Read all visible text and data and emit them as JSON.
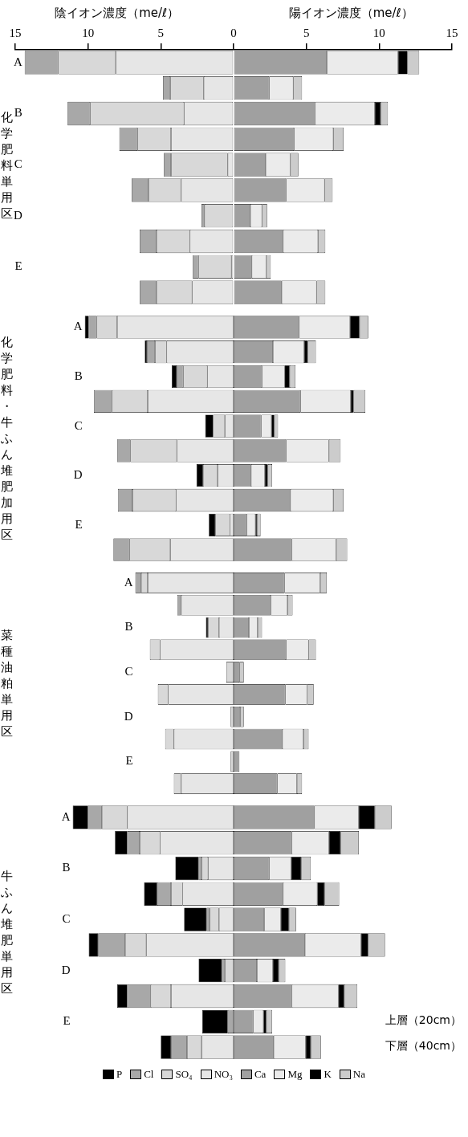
{
  "chart_data": [
    {
      "type": "bar",
      "orientation": "horizontal",
      "stacked": true,
      "xlim": [
        -15,
        15
      ],
      "xticks": [
        {
          "value": -15,
          "label": "15"
        },
        {
          "value": -10,
          "label": "10"
        },
        {
          "value": -5,
          "label": "5"
        },
        {
          "value": 0,
          "label": "0"
        },
        {
          "value": 5,
          "label": "5"
        },
        {
          "value": 10,
          "label": "10"
        },
        {
          "value": 15,
          "label": "15"
        }
      ],
      "ylabel": "化学肥料単用区",
      "annotations": [
        "陰イオン濃度（me/ℓ）",
        "陽イオン濃度（me/ℓ）"
      ],
      "categories": [
        "A",
        null,
        "B",
        null,
        "C",
        null,
        "D",
        null,
        "E",
        null
      ],
      "series": [
        {
          "color": "#e6e6e6",
          "values": [
            -8.1,
            -2.05,
            -3.4,
            -4.3,
            -0.4,
            -3.6,
            null,
            -3.0,
            -0.15,
            -2.85
          ]
        },
        {
          "color": "#d8d8d8",
          "values": [
            -3.95,
            -2.3,
            -6.45,
            -2.3,
            -3.9,
            -2.25,
            -2.0,
            -2.3,
            -2.25,
            -2.45
          ]
        },
        {
          "color": "#a8a8a8",
          "values": [
            -2.3,
            -0.5,
            -1.55,
            -1.25,
            -0.5,
            -1.15,
            -0.2,
            -1.15,
            -0.4,
            -1.15
          ]
        },
        {
          "color": "#a0a0a0",
          "values": [
            6.4,
            2.45,
            5.6,
            4.15,
            2.2,
            3.6,
            1.15,
            3.4,
            1.25,
            3.3
          ]
        },
        {
          "color": "#ebebeb",
          "values": [
            4.9,
            1.65,
            4.1,
            2.7,
            1.7,
            2.65,
            0.8,
            2.4,
            1.0,
            2.4
          ]
        },
        {
          "color": "#000000",
          "values": [
            0.65,
            null,
            0.4,
            null,
            null,
            null,
            null,
            null,
            null,
            null
          ]
        },
        {
          "color": "#cccccc",
          "values": [
            0.8,
            0.6,
            0.5,
            0.7,
            0.55,
            0.55,
            0.35,
            0.5,
            0.3,
            0.6
          ]
        }
      ]
    },
    {
      "type": "bar",
      "orientation": "horizontal",
      "stacked": true,
      "xlim": [
        -15,
        15
      ],
      "tick_labels": "y",
      "ylabel": "化学肥料・牛ふん堆肥加用区",
      "categories": [
        "A",
        null,
        "B",
        null,
        "C",
        null,
        "D",
        null,
        "E",
        null
      ],
      "series": [
        {
          "color": "#e6e6e6",
          "values": [
            -8.0,
            -4.6,
            -1.8,
            -5.9,
            -0.6,
            -3.9,
            -1.1,
            -3.95,
            -0.25,
            -4.35
          ]
        },
        {
          "color": "#d8d8d8",
          "values": [
            -1.4,
            -0.8,
            -1.65,
            -2.45,
            -0.8,
            -3.2,
            -1.0,
            -3.0,
            -1.0,
            -2.8
          ]
        },
        {
          "color": "#a8a8a8",
          "values": [
            -0.55,
            -0.55,
            -0.45,
            -1.25,
            null,
            -0.9,
            null,
            -1.0,
            null,
            -1.1
          ]
        },
        {
          "color": "#000000",
          "values": [
            -0.27,
            -0.15,
            -0.35,
            null,
            -0.55,
            null,
            -0.45,
            null,
            -0.45,
            null
          ]
        },
        {
          "color": "#a0a0a0",
          "values": [
            4.5,
            2.7,
            1.95,
            4.6,
            1.9,
            3.6,
            1.2,
            3.9,
            0.9,
            4.0
          ]
        },
        {
          "color": "#ebebeb",
          "values": [
            3.5,
            2.15,
            1.55,
            3.45,
            0.7,
            2.95,
            0.95,
            2.95,
            0.6,
            3.05
          ]
        },
        {
          "color": "#000000",
          "values": [
            0.65,
            0.25,
            0.35,
            0.2,
            0.2,
            null,
            0.2,
            null,
            0.1,
            null
          ]
        },
        {
          "color": "#cccccc",
          "values": [
            0.6,
            0.55,
            0.4,
            0.8,
            0.25,
            0.8,
            0.3,
            0.7,
            0.25,
            0.75
          ]
        }
      ]
    },
    {
      "type": "bar",
      "orientation": "horizontal",
      "stacked": true,
      "xlim": [
        -15,
        15
      ],
      "tick_labels": "y",
      "ylabel": "菜種油粕単用区",
      "categories": [
        "A",
        null,
        "B",
        null,
        "C",
        null,
        "D",
        null,
        "E",
        null
      ],
      "series": [
        {
          "color": "#e6e6e6",
          "values": [
            -5.9,
            -3.6,
            -1.0,
            -5.05,
            null,
            -4.5,
            null,
            -4.1,
            null,
            -3.6
          ]
        },
        {
          "color": "#d8d8d8",
          "values": [
            -0.45,
            null,
            -0.75,
            -0.7,
            -0.5,
            -0.7,
            -0.2,
            -0.6,
            -0.2,
            -0.5
          ]
        },
        {
          "color": "#a8a8a8",
          "values": [
            -0.4,
            -0.27,
            null,
            null,
            null,
            null,
            null,
            null,
            null,
            null
          ]
        },
        {
          "color": "#000000",
          "values": [
            null,
            null,
            -0.15,
            null,
            null,
            null,
            null,
            null,
            null,
            null
          ]
        },
        {
          "color": "#a0a0a0",
          "values": [
            3.5,
            2.55,
            1.05,
            3.6,
            0.4,
            3.55,
            0.45,
            3.35,
            0.4,
            3.0
          ]
        },
        {
          "color": "#ebebeb",
          "values": [
            2.45,
            1.15,
            0.6,
            1.55,
            null,
            1.5,
            null,
            1.45,
            null,
            1.35
          ]
        },
        {
          "color": "#cccccc",
          "values": [
            0.45,
            0.35,
            0.3,
            0.5,
            0.3,
            0.45,
            0.25,
            0.35,
            null,
            0.35
          ]
        }
      ]
    },
    {
      "type": "bar",
      "orientation": "horizontal",
      "stacked": true,
      "xlim": [
        -15,
        15
      ],
      "tick_labels": "y",
      "legend": "bottom",
      "ylabel": "牛ふん堆肥単用区",
      "annotations": [
        "上層（20cm）",
        "下層（40cm）"
      ],
      "categories": [
        "A",
        null,
        "B",
        null,
        "C",
        null,
        "D",
        null,
        "E",
        null
      ],
      "series": [
        {
          "name": "NO₃",
          "color": "#e6e6e6",
          "values": [
            -7.3,
            -5.05,
            -1.75,
            -3.5,
            -1.0,
            -6.0,
            null,
            -4.3,
            null,
            -2.2
          ]
        },
        {
          "name": "SO₄",
          "color": "#d8d8d8",
          "values": [
            -1.75,
            -1.4,
            -0.45,
            -0.8,
            -0.65,
            -1.45,
            -0.6,
            -1.4,
            null,
            -1.0
          ]
        },
        {
          "name": "Cl",
          "color": "#a8a8a8",
          "values": [
            -0.95,
            -0.85,
            -0.2,
            -0.95,
            -0.2,
            -1.85,
            -0.2,
            -1.6,
            -0.4,
            -1.1
          ]
        },
        {
          "name": "P",
          "color": "#000000",
          "values": [
            -1.05,
            -0.85,
            -1.6,
            -0.9,
            -1.55,
            -0.65,
            -1.6,
            -0.7,
            -1.75,
            -0.7
          ]
        },
        {
          "name": "Ca",
          "color": "#a0a0a0",
          "values": [
            5.55,
            4.0,
            2.45,
            3.4,
            2.1,
            4.9,
            1.6,
            4.0,
            1.35,
            2.75
          ]
        },
        {
          "name": "Mg",
          "color": "#ebebeb",
          "values": [
            3.05,
            2.55,
            1.5,
            2.35,
            1.15,
            3.85,
            1.1,
            3.2,
            0.7,
            2.2
          ]
        },
        {
          "name": "K",
          "color": "#000000",
          "values": [
            1.1,
            0.8,
            0.7,
            0.5,
            0.55,
            0.5,
            0.4,
            0.4,
            0.2,
            0.35
          ]
        },
        {
          "name": "Na",
          "color": "#cccccc",
          "values": [
            1.15,
            1.25,
            0.65,
            1.0,
            0.5,
            1.15,
            0.45,
            0.9,
            0.4,
            0.7
          ]
        }
      ]
    }
  ]
}
